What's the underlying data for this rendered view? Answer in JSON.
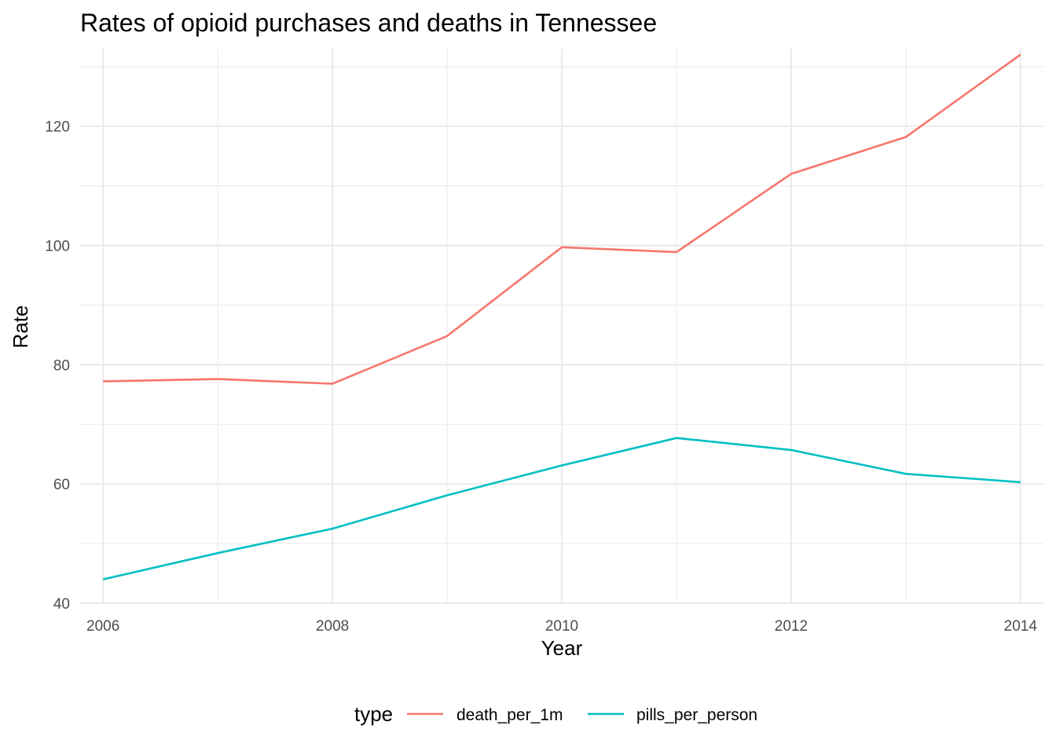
{
  "chart_data": {
    "type": "line",
    "title": "Rates of opioid purchases and deaths in Tennessee",
    "xlabel": "Year",
    "ylabel": "Rate",
    "x": [
      2006,
      2007,
      2008,
      2009,
      2010,
      2011,
      2012,
      2013,
      2014
    ],
    "xlim": [
      2005.8,
      2014.2
    ],
    "ylim": [
      40,
      133
    ],
    "x_ticks": [
      "2006",
      "2008",
      "2010",
      "2012",
      "2014"
    ],
    "y_ticks": [
      "40",
      "60",
      "80",
      "100",
      "120"
    ],
    "grid": true,
    "legend": {
      "title": "type",
      "position": "bottom"
    },
    "series": [
      {
        "name": "death_per_1m",
        "color": "#F8766D",
        "values": [
          77.2,
          77.6,
          76.8,
          84.8,
          99.7,
          98.9,
          112.0,
          118.2,
          132.0
        ]
      },
      {
        "name": "pills_per_person",
        "color": "#00BFC4",
        "values": [
          44.0,
          48.4,
          52.5,
          58.1,
          63.1,
          67.7,
          65.7,
          61.7,
          60.3
        ]
      }
    ]
  }
}
